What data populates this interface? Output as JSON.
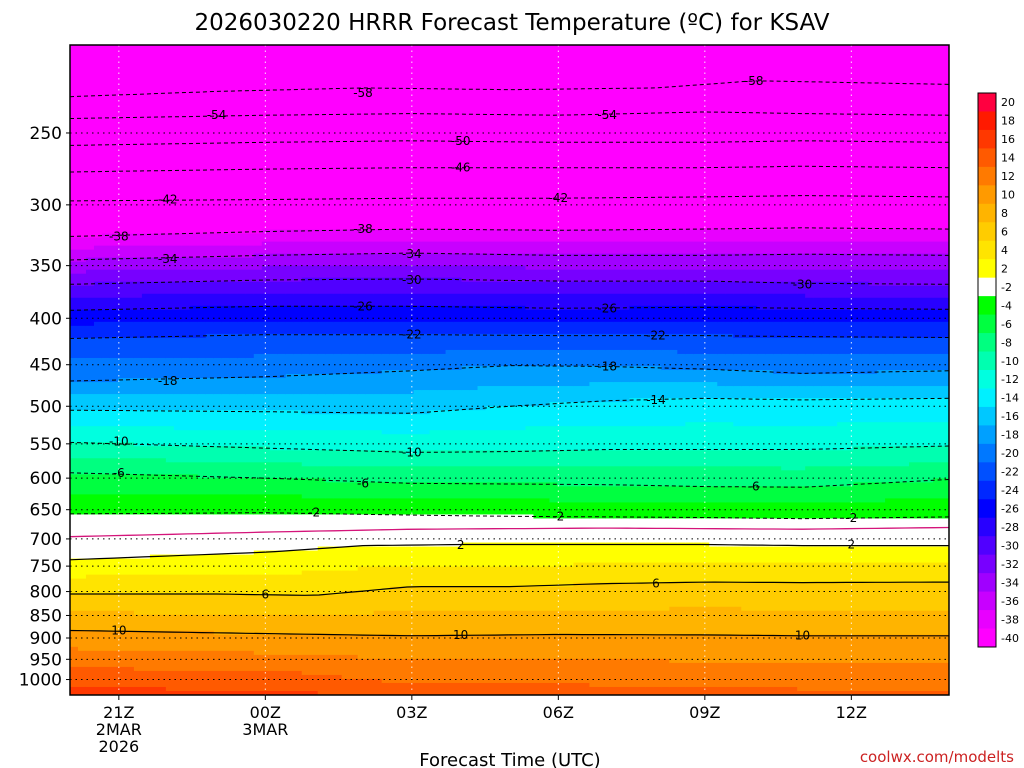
{
  "chart_data": {
    "type": "heatmap",
    "title": "2026030220 HRRR Forecast Temperature (ºC) for KSAV",
    "xlabel": "Forecast Time (UTC)",
    "ylabel": "",
    "credit": "coolwx.com/modelts",
    "x_ticks": [
      {
        "t": 0,
        "lines": [
          "21Z",
          "2MAR",
          "2026"
        ]
      },
      {
        "t": 3,
        "lines": [
          "00Z",
          "3MAR"
        ]
      },
      {
        "t": 6,
        "lines": [
          "03Z"
        ]
      },
      {
        "t": 9,
        "lines": [
          "06Z"
        ]
      },
      {
        "t": 12,
        "lines": [
          "09Z"
        ]
      },
      {
        "t": 15,
        "lines": [
          "12Z"
        ]
      }
    ],
    "x_range_hours": [
      -1,
      17
    ],
    "y_axis": {
      "scale": "log",
      "unit": "hPa",
      "range": [
        1040,
        200
      ],
      "ticks": [
        250,
        300,
        350,
        400,
        450,
        500,
        550,
        600,
        650,
        700,
        750,
        800,
        850,
        900,
        950,
        1000
      ]
    },
    "grid": true,
    "colorbar": {
      "position": "right",
      "levels": [
        20,
        18,
        16,
        14,
        12,
        10,
        8,
        6,
        4,
        2,
        -2,
        -4,
        -6,
        -8,
        -10,
        -12,
        -14,
        -16,
        -18,
        -20,
        -22,
        -24,
        -26,
        -28,
        -30,
        -32,
        -34,
        -36,
        -38,
        -40
      ],
      "colors": [
        "#ff0040",
        "#ff1a00",
        "#ff3800",
        "#ff5a00",
        "#ff7a00",
        "#ff9a00",
        "#ffb400",
        "#ffcc00",
        "#ffe400",
        "#ffff00",
        "#ffffff",
        "#00ff00",
        "#00ff40",
        "#00ff80",
        "#00ffb0",
        "#00ffe0",
        "#00f0ff",
        "#00c8ff",
        "#00a0ff",
        "#0078ff",
        "#0050ff",
        "#0028ff",
        "#0000ff",
        "#2800ff",
        "#5000ff",
        "#7800ff",
        "#a000ff",
        "#c800ff",
        "#e800ff",
        "#ff00ff"
      ]
    },
    "contours": [
      {
        "level": -58,
        "label": "-58",
        "points": [
          [
            -1,
            228
          ],
          [
            2,
            225
          ],
          [
            5,
            223
          ],
          [
            8,
            224
          ],
          [
            11,
            223
          ],
          [
            13,
            219
          ],
          [
            17,
            221
          ]
        ]
      },
      {
        "level": -54,
        "label": "-54",
        "points": [
          [
            -1,
            241
          ],
          [
            3,
            239
          ],
          [
            6,
            238
          ],
          [
            9,
            239
          ],
          [
            12,
            237
          ],
          [
            14,
            238
          ],
          [
            17,
            239
          ]
        ]
      },
      {
        "level": -50,
        "label": "-50",
        "points": [
          [
            -1,
            258
          ],
          [
            3,
            256
          ],
          [
            6,
            255
          ],
          [
            9,
            256
          ],
          [
            12,
            256
          ],
          [
            14,
            255
          ],
          [
            17,
            256
          ]
        ]
      },
      {
        "level": -46,
        "label": "-46",
        "points": [
          [
            -1,
            276
          ],
          [
            3,
            274
          ],
          [
            6,
            273
          ],
          [
            9,
            273
          ],
          [
            12,
            273
          ],
          [
            14,
            272
          ],
          [
            17,
            273
          ]
        ]
      },
      {
        "level": -42,
        "label": "-42",
        "points": [
          [
            -1,
            297
          ],
          [
            3,
            296
          ],
          [
            6,
            295
          ],
          [
            9,
            295
          ],
          [
            12,
            294
          ],
          [
            14,
            293
          ],
          [
            17,
            294
          ]
        ]
      },
      {
        "level": -38,
        "label": "-38",
        "points": [
          [
            -1,
            325
          ],
          [
            3,
            321
          ],
          [
            6,
            319
          ],
          [
            9,
            320
          ],
          [
            12,
            319
          ],
          [
            14,
            318
          ],
          [
            17,
            319
          ]
        ]
      },
      {
        "level": -34,
        "label": "-34",
        "points": [
          [
            -1,
            345
          ],
          [
            3,
            341
          ],
          [
            6,
            339
          ],
          [
            9,
            341
          ],
          [
            12,
            341
          ],
          [
            14,
            340
          ],
          [
            17,
            341
          ]
        ]
      },
      {
        "level": -30,
        "label": "-30",
        "points": [
          [
            -1,
            367
          ],
          [
            3,
            363
          ],
          [
            6,
            362
          ],
          [
            9,
            364
          ],
          [
            12,
            364
          ],
          [
            14,
            366
          ],
          [
            17,
            367
          ]
        ]
      },
      {
        "level": -26,
        "label": "-26",
        "points": [
          [
            -1,
            392
          ],
          [
            3,
            388
          ],
          [
            6,
            388
          ],
          [
            9,
            390
          ],
          [
            12,
            389
          ],
          [
            14,
            390
          ],
          [
            17,
            391
          ]
        ]
      },
      {
        "level": -22,
        "label": "-22",
        "points": [
          [
            -1,
            421
          ],
          [
            3,
            417
          ],
          [
            6,
            417
          ],
          [
            9,
            418
          ],
          [
            12,
            418
          ],
          [
            14,
            419
          ],
          [
            17,
            420
          ]
        ]
      },
      {
        "level": -18,
        "label": "-18",
        "points": [
          [
            -1,
            469
          ],
          [
            3,
            464
          ],
          [
            6,
            457
          ],
          [
            8,
            451
          ],
          [
            10,
            452
          ],
          [
            12,
            455
          ],
          [
            14,
            460
          ],
          [
            17,
            457
          ]
        ]
      },
      {
        "level": -14,
        "label": "-14",
        "points": [
          [
            -1,
            505
          ],
          [
            3,
            507
          ],
          [
            6,
            509
          ],
          [
            8,
            500
          ],
          [
            10,
            493
          ],
          [
            12,
            490
          ],
          [
            14,
            492
          ],
          [
            17,
            490
          ]
        ]
      },
      {
        "level": -10,
        "label": "-10",
        "points": [
          [
            -1,
            548
          ],
          [
            3,
            556
          ],
          [
            6,
            562
          ],
          [
            8,
            561
          ],
          [
            10,
            558
          ],
          [
            12,
            558
          ],
          [
            14,
            558
          ],
          [
            17,
            553
          ]
        ]
      },
      {
        "level": -6,
        "label": "-6",
        "points": [
          [
            -1,
            592
          ],
          [
            3,
            600
          ],
          [
            6,
            608
          ],
          [
            8,
            609
          ],
          [
            10,
            610
          ],
          [
            12,
            613
          ],
          [
            14,
            614
          ],
          [
            17,
            602
          ]
        ]
      },
      {
        "level": -2,
        "label": "-2",
        "points": [
          [
            -1,
            657
          ],
          [
            3,
            655
          ],
          [
            6,
            659
          ],
          [
            8,
            661
          ],
          [
            10,
            662
          ],
          [
            12,
            663
          ],
          [
            14,
            665
          ],
          [
            17,
            662
          ]
        ]
      },
      {
        "level": 0,
        "label": "",
        "points": [
          [
            -1,
            696
          ],
          [
            3,
            688
          ],
          [
            6,
            683
          ],
          [
            8,
            682
          ],
          [
            10,
            681
          ],
          [
            12,
            682
          ],
          [
            14,
            683
          ],
          [
            17,
            680
          ]
        ]
      },
      {
        "level": 2,
        "label": "2",
        "points": [
          [
            -1,
            738
          ],
          [
            3,
            724
          ],
          [
            5,
            712
          ],
          [
            7,
            710
          ],
          [
            10,
            710
          ],
          [
            12,
            710
          ],
          [
            14,
            712
          ],
          [
            17,
            712
          ]
        ]
      },
      {
        "level": 6,
        "label": "6",
        "points": [
          [
            -1,
            805
          ],
          [
            2,
            805
          ],
          [
            4,
            808
          ],
          [
            6,
            790
          ],
          [
            8,
            790
          ],
          [
            10,
            784
          ],
          [
            12,
            781
          ],
          [
            14,
            782
          ],
          [
            17,
            781
          ]
        ]
      },
      {
        "level": 10,
        "label": "10",
        "points": [
          [
            -1,
            883
          ],
          [
            3,
            890
          ],
          [
            6,
            895
          ],
          [
            9,
            892
          ],
          [
            12,
            893
          ],
          [
            14,
            895
          ],
          [
            17,
            895
          ]
        ]
      }
    ],
    "contour_label_positions": [
      {
        "t": 5,
        "p": 226,
        "label": "-58"
      },
      {
        "t": 13,
        "p": 219,
        "label": "-58"
      },
      {
        "t": 2,
        "p": 239,
        "label": "-54"
      },
      {
        "t": 10,
        "p": 239,
        "label": "-54"
      },
      {
        "t": 7,
        "p": 255,
        "label": "-50"
      },
      {
        "t": 7,
        "p": 273,
        "label": "-46"
      },
      {
        "t": 1,
        "p": 296,
        "label": "-42"
      },
      {
        "t": 9,
        "p": 295,
        "label": "-42"
      },
      {
        "t": 0,
        "p": 325,
        "label": "-38"
      },
      {
        "t": 5,
        "p": 319,
        "label": "-38"
      },
      {
        "t": 1,
        "p": 344,
        "label": "-34"
      },
      {
        "t": 6,
        "p": 340,
        "label": "-34"
      },
      {
        "t": 6,
        "p": 363,
        "label": "-30"
      },
      {
        "t": 14,
        "p": 367,
        "label": "-30"
      },
      {
        "t": 5,
        "p": 388,
        "label": "-26"
      },
      {
        "t": 10,
        "p": 390,
        "label": "-26"
      },
      {
        "t": 6,
        "p": 417,
        "label": "-22"
      },
      {
        "t": 11,
        "p": 418,
        "label": "-22"
      },
      {
        "t": 1,
        "p": 469,
        "label": "-18"
      },
      {
        "t": 10,
        "p": 452,
        "label": "-18"
      },
      {
        "t": 11,
        "p": 492,
        "label": "-14"
      },
      {
        "t": 0,
        "p": 547,
        "label": "-10"
      },
      {
        "t": 6,
        "p": 562,
        "label": "-10"
      },
      {
        "t": 0,
        "p": 592,
        "label": "-6"
      },
      {
        "t": 5,
        "p": 608,
        "label": "-6"
      },
      {
        "t": 13,
        "p": 613,
        "label": "-6"
      },
      {
        "t": 4,
        "p": 655,
        "label": "-2"
      },
      {
        "t": 9,
        "p": 661,
        "label": "-2"
      },
      {
        "t": 15,
        "p": 664,
        "label": "-2"
      },
      {
        "t": 7,
        "p": 711,
        "label": "2"
      },
      {
        "t": 15,
        "p": 710,
        "label": "2"
      },
      {
        "t": 3,
        "p": 806,
        "label": "6"
      },
      {
        "t": 11,
        "p": 784,
        "label": "6"
      },
      {
        "t": 0,
        "p": 883,
        "label": "10"
      },
      {
        "t": 7,
        "p": 893,
        "label": "10"
      },
      {
        "t": 14,
        "p": 894,
        "label": "10"
      }
    ]
  }
}
